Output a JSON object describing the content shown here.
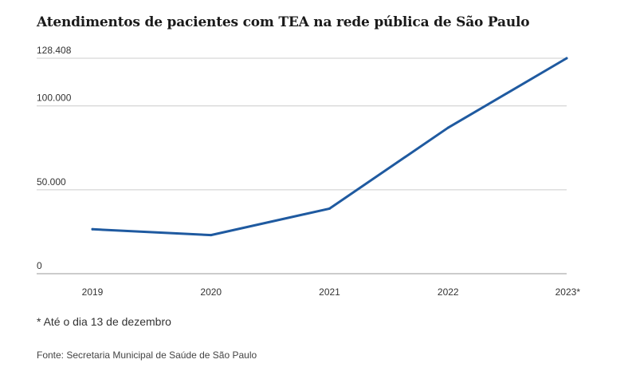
{
  "chart_data": {
    "type": "line",
    "title": "Atendimentos de pacientes com TEA na rede pública de São Paulo",
    "categories": [
      "2019",
      "2020",
      "2021",
      "2022",
      "2023*"
    ],
    "series": [
      {
        "name": "",
        "values": [
          26500,
          23000,
          38800,
          87000,
          128408
        ]
      }
    ],
    "y_ticks": [
      {
        "value": 0,
        "label": "0"
      },
      {
        "value": 50000,
        "label": "50.000"
      },
      {
        "value": 100000,
        "label": "100.000"
      },
      {
        "value": 128408,
        "label": "128.408"
      }
    ],
    "ylim": [
      0,
      128408
    ],
    "xlabel": "",
    "ylabel": "",
    "grid": true,
    "line_color": "#1f5aa0",
    "grid_color": "#cccccc"
  },
  "footnote": "* Até o dia 13 de dezembro",
  "source": "Fonte: Secretaria Municipal de Saúde de São Paulo"
}
